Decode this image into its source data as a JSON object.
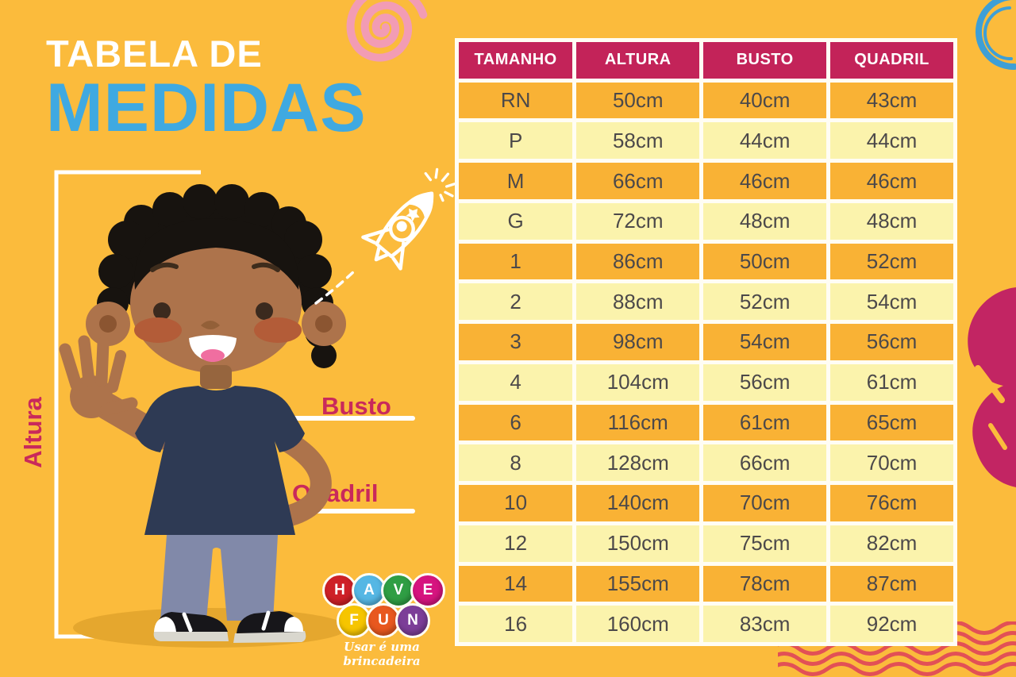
{
  "title": {
    "line1": "TABELA DE",
    "line2": "MEDIDAS"
  },
  "figure_labels": {
    "altura": "Altura",
    "busto": "Busto",
    "quadril": "Quadril"
  },
  "table": {
    "headers": [
      "TAMANHO",
      "ALTURA",
      "BUSTO",
      "QUADRIL"
    ],
    "rows": [
      [
        "RN",
        "50cm",
        "40cm",
        "43cm"
      ],
      [
        "P",
        "58cm",
        "44cm",
        "44cm"
      ],
      [
        "M",
        "66cm",
        "46cm",
        "46cm"
      ],
      [
        "G",
        "72cm",
        "48cm",
        "48cm"
      ],
      [
        "1",
        "86cm",
        "50cm",
        "52cm"
      ],
      [
        "2",
        "88cm",
        "52cm",
        "54cm"
      ],
      [
        "3",
        "98cm",
        "54cm",
        "56cm"
      ],
      [
        "4",
        "104cm",
        "56cm",
        "61cm"
      ],
      [
        "6",
        "116cm",
        "61cm",
        "65cm"
      ],
      [
        "8",
        "128cm",
        "66cm",
        "70cm"
      ],
      [
        "10",
        "140cm",
        "70cm",
        "76cm"
      ],
      [
        "12",
        "150cm",
        "75cm",
        "82cm"
      ],
      [
        "14",
        "155cm",
        "78cm",
        "87cm"
      ],
      [
        "16",
        "160cm",
        "83cm",
        "92cm"
      ]
    ]
  },
  "logo": {
    "letters": [
      {
        "char": "H",
        "color": "#CE2027"
      },
      {
        "char": "A",
        "color": "#55B7E4"
      },
      {
        "char": "V",
        "color": "#2F9E44"
      },
      {
        "char": "E",
        "color": "#D6147F"
      },
      {
        "char": "F",
        "color": "#F6C500"
      },
      {
        "char": "U",
        "color": "#E8581F"
      },
      {
        "char": "N",
        "color": "#7C3E98"
      }
    ],
    "tagline": "Usar é uma brincadeira"
  },
  "colors": {
    "background": "#FBBB3C",
    "title_line1": "#FFFFFF",
    "title_line2": "#3FA9E1",
    "label_crimson": "#C9295B",
    "table_header_bg": "#C32359",
    "table_row_orange": "#F9B235",
    "table_row_light": "#FBF3AC",
    "table_text": "#4C494A",
    "spiral_pink": "#F29CB4",
    "circle_doodle_blue": "#3E9FD6",
    "brush_magenta": "#C22563",
    "wave_red": "#E25056"
  }
}
